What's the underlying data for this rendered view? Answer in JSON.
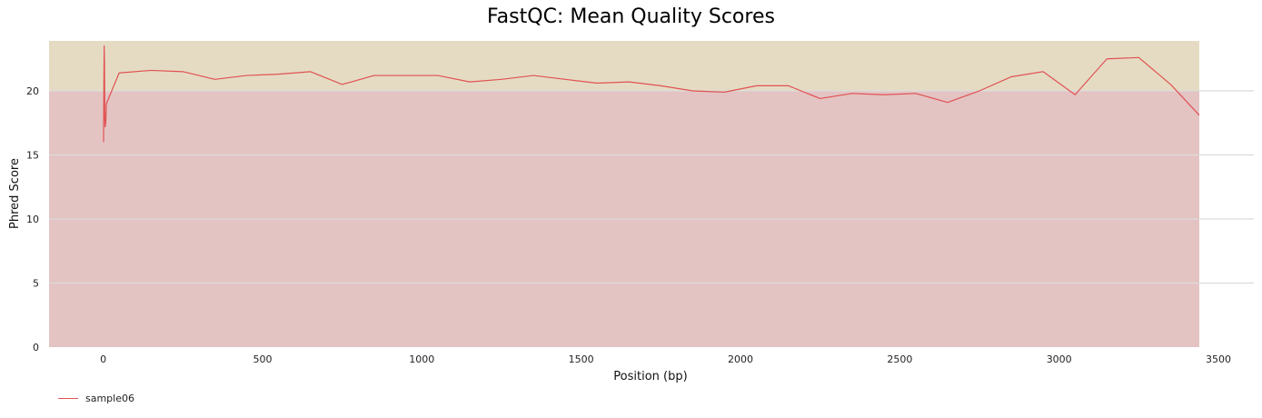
{
  "chart_data": {
    "type": "line",
    "title": "FastQC: Mean Quality Scores",
    "xlabel": "Position (bp)",
    "ylabel": "Phred Score",
    "xlim": [
      -170,
      3440
    ],
    "ylim": [
      0,
      23.9
    ],
    "xticks": [
      0,
      500,
      1000,
      1500,
      2000,
      2500,
      3000,
      3500
    ],
    "yticks": [
      0,
      5,
      10,
      15,
      20
    ],
    "grid": "horizontal",
    "legend_position": "bottom-left",
    "bands": [
      {
        "from": 0,
        "to": 20,
        "color": "#e4c3c3"
      },
      {
        "from": 20,
        "to": 23.9,
        "color": "#e5dbc3"
      }
    ],
    "series": [
      {
        "name": "sample06",
        "color": "#e05252",
        "x": [
          1,
          2,
          3,
          4,
          5,
          6,
          7,
          8,
          9,
          10,
          50,
          150,
          250,
          350,
          450,
          550,
          650,
          750,
          850,
          950,
          1050,
          1150,
          1250,
          1350,
          1450,
          1550,
          1650,
          1750,
          1850,
          1950,
          2050,
          2150,
          2250,
          2350,
          2450,
          2550,
          2650,
          2750,
          2850,
          2950,
          3050,
          3150,
          3250,
          3350,
          3440
        ],
        "y": [
          16.0,
          20.5,
          23.5,
          22.0,
          17.8,
          17.2,
          17.3,
          17.6,
          18.2,
          19.0,
          21.4,
          21.6,
          21.5,
          20.9,
          21.2,
          21.3,
          21.5,
          20.5,
          21.2,
          21.2,
          21.2,
          20.7,
          20.9,
          21.2,
          20.9,
          20.6,
          20.7,
          20.4,
          20.0,
          19.9,
          20.4,
          20.4,
          19.4,
          19.8,
          19.7,
          19.8,
          19.1,
          20.0,
          21.1,
          21.5,
          19.7,
          22.5,
          22.6,
          20.5,
          18.1
        ]
      }
    ]
  }
}
